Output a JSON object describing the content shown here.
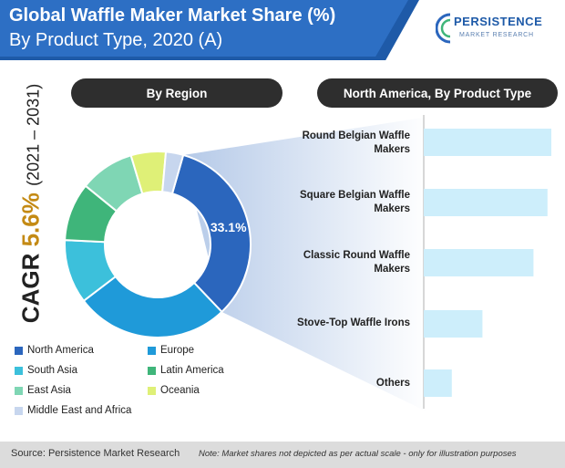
{
  "header": {
    "title_line1": "Global Waffle Maker Market Share (%)",
    "title_line2": "By Product Type, 2020 (A)"
  },
  "logo": {
    "name": "PERSISTENCE",
    "subtitle": "MARKET RESEARCH"
  },
  "cagr": {
    "label": "CAGR",
    "value": "5.6%",
    "period": "(2021 – 2031)"
  },
  "panels": {
    "left_title": "By Region",
    "right_title": "North America, By Product Type"
  },
  "colors": {
    "north_america": "#2b66bd",
    "europe": "#1f9ad9",
    "south_asia": "#3cc0db",
    "latin_america": "#3fb57a",
    "east_asia": "#7fd6b4",
    "oceania": "#dff077",
    "middle_east_africa": "#c7d6ee",
    "bar": "#cdeefb"
  },
  "chart_data": [
    {
      "type": "pie",
      "variant": "donut",
      "title": "By Region",
      "categories": [
        "North America",
        "Europe",
        "South Asia",
        "Latin America",
        "East Asia",
        "Oceania",
        "Middle East and Africa"
      ],
      "values": [
        33.1,
        26.5,
        11.0,
        10.0,
        9.4,
        6.0,
        3.0
      ],
      "data_labels": [
        "33.1%",
        "",
        "",
        "",
        "",
        "",
        ""
      ],
      "legend": "bottom"
    },
    {
      "type": "bar",
      "orientation": "horizontal",
      "title": "North America, By Product Type",
      "categories": [
        "Round Belgian Waffle Makers",
        "Square Belgian Waffle Makers",
        "Classic Round Waffle Makers",
        "Stove-Top Waffle Irons",
        "Others"
      ],
      "category_lines": [
        [
          "Round Belgian Waffle",
          "Makers"
        ],
        [
          "Square Belgian Waffle",
          "Makers"
        ],
        [
          "Classic Round Waffle",
          "Makers"
        ],
        [
          "Stove-Top Waffle Irons"
        ],
        [
          "Others"
        ]
      ],
      "values": [
        100,
        97,
        86,
        46,
        22
      ]
    }
  ],
  "legend": {
    "items": [
      {
        "label": "North America",
        "color_key": "north_america"
      },
      {
        "label": "Europe",
        "color_key": "europe"
      },
      {
        "label": "South Asia",
        "color_key": "south_asia"
      },
      {
        "label": "Latin America",
        "color_key": "latin_america"
      },
      {
        "label": "East Asia",
        "color_key": "east_asia"
      },
      {
        "label": "Oceania",
        "color_key": "oceania"
      },
      {
        "label": "Middle East and Africa",
        "color_key": "middle_east_africa"
      }
    ]
  },
  "footer": {
    "source": "Source: Persistence Market Research",
    "note": "Note: Market shares not depicted as per actual scale - only for illustration purposes"
  }
}
